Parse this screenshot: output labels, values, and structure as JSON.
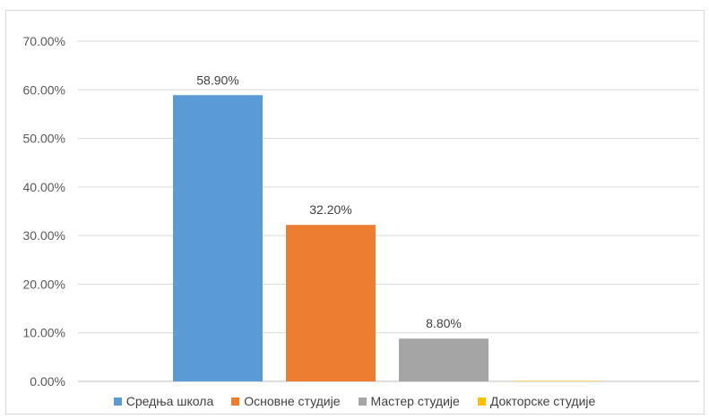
{
  "chart_data": {
    "type": "bar",
    "categories": [
      "Средња школа",
      "Основне студије",
      "Мастер студије",
      "Докторске студије"
    ],
    "values": [
      58.9,
      32.2,
      8.8,
      0.1
    ],
    "data_labels": [
      "58.90%",
      "32.20%",
      "8.80%",
      ""
    ],
    "colors": [
      "#5b9bd5",
      "#ed7d31",
      "#a5a5a5",
      "#ffc000"
    ],
    "ylim": [
      0,
      70
    ],
    "yticks": [
      0,
      10,
      20,
      30,
      40,
      50,
      60,
      70
    ],
    "ytick_labels": [
      "0.00%",
      "10.00%",
      "20.00%",
      "30.00%",
      "40.00%",
      "50.00%",
      "60.00%",
      "70.00%"
    ],
    "grid": true,
    "legend_position": "bottom"
  }
}
